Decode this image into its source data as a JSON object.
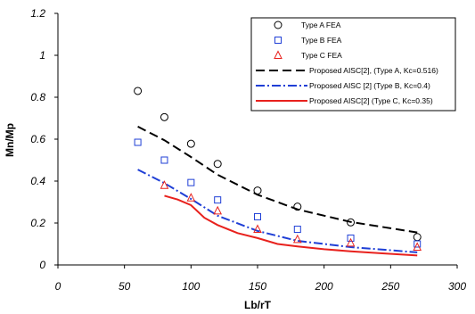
{
  "chart_data": {
    "type": "scatter",
    "xlabel": "Lb/rT",
    "ylabel": "Mn/Mp",
    "xlim": [
      0,
      300
    ],
    "ylim": [
      0,
      1.2
    ],
    "x_ticks": [
      "0",
      "50",
      "100",
      "150",
      "200",
      "250",
      "300"
    ],
    "y_ticks": [
      "0",
      "0.2",
      "0.4",
      "0.6",
      "0.8",
      "1",
      "1.2"
    ],
    "grid": false,
    "legend_position": "top-right",
    "series": [
      {
        "name": "Type A FEA",
        "kind": "marker",
        "marker": "circle",
        "color": "#000000",
        "x": [
          60,
          80,
          100,
          120,
          150,
          180,
          220,
          270
        ],
        "y": [
          0.83,
          0.705,
          0.578,
          0.482,
          0.355,
          0.278,
          0.203,
          0.133
        ]
      },
      {
        "name": "Type B FEA",
        "kind": "marker",
        "marker": "square",
        "color": "#1f3fd6",
        "x": [
          60,
          80,
          100,
          120,
          150,
          180,
          220,
          270
        ],
        "y": [
          0.585,
          0.5,
          0.393,
          0.31,
          0.23,
          0.17,
          0.128,
          0.1
        ]
      },
      {
        "name": "Type C FEA",
        "kind": "marker",
        "marker": "triangle",
        "color": "#e8211d",
        "x": [
          80,
          100,
          120,
          150,
          180,
          220,
          270
        ],
        "y": [
          0.38,
          0.32,
          0.258,
          0.17,
          0.122,
          0.105,
          0.085
        ]
      },
      {
        "name": "Proposed AISC[2], (Type A, Kc=0.516)",
        "kind": "line",
        "dash": "10,5",
        "color": "#000000",
        "x": [
          60,
          80,
          100,
          120,
          150,
          180,
          220,
          270
        ],
        "y": [
          0.66,
          0.595,
          0.515,
          0.43,
          0.335,
          0.265,
          0.205,
          0.155
        ]
      },
      {
        "name": "Proposed AISC [2] (Type B, Kc=0.4)",
        "kind": "line",
        "dash": "10,3,2,3",
        "color": "#1f3fd6",
        "x": [
          60,
          80,
          100,
          120,
          150,
          180,
          220,
          270
        ],
        "y": [
          0.455,
          0.39,
          0.315,
          0.235,
          0.162,
          0.115,
          0.085,
          0.06
        ]
      },
      {
        "name": "Proposed AISC[2] (Type C, Kc=0.35)",
        "kind": "line",
        "dash": "",
        "color": "#e8211d",
        "x": [
          80,
          90,
          100,
          110,
          120,
          135,
          150,
          165,
          180,
          200,
          220,
          245,
          270
        ],
        "y": [
          0.33,
          0.312,
          0.285,
          0.225,
          0.19,
          0.152,
          0.128,
          0.1,
          0.088,
          0.075,
          0.065,
          0.055,
          0.045
        ]
      }
    ]
  }
}
